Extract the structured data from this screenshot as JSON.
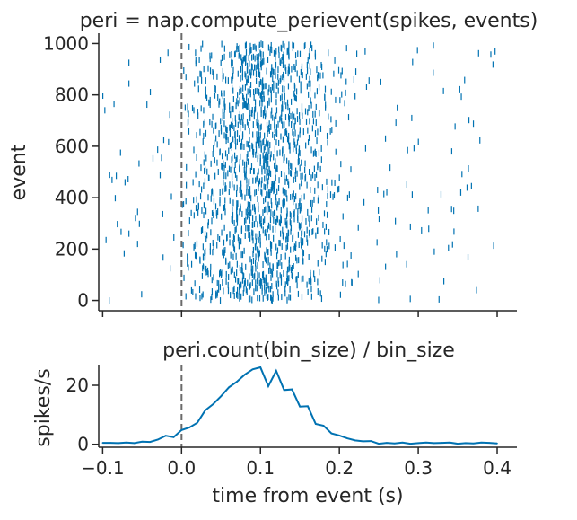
{
  "chart_data": [
    {
      "type": "raster",
      "title": "peri = nap.compute_perievent(spikes, events)",
      "xlabel": "",
      "ylabel": "event",
      "xlim": [
        -0.105,
        0.425
      ],
      "ylim": [
        -40,
        1040
      ],
      "xticks": [
        -0.1,
        0.0,
        0.1,
        0.2,
        0.3,
        0.4
      ],
      "yticks": [
        0,
        200,
        400,
        600,
        800,
        1000
      ],
      "ytick_labels": [
        "0",
        "200",
        "400",
        "600",
        "800",
        "1000"
      ],
      "n_events": 1000,
      "event_line_x": 0.0,
      "color": "#0072b2",
      "event_line_color": "#6b6b6b"
    },
    {
      "type": "line",
      "title": "peri.count(bin_size) / bin_size",
      "xlabel": "time from event (s)",
      "ylabel": "spikes/s",
      "xlim": [
        -0.105,
        0.425
      ],
      "ylim": [
        -1,
        27
      ],
      "xticks": [
        -0.1,
        0.0,
        0.1,
        0.2,
        0.3,
        0.4
      ],
      "xtick_labels": [
        "−0.1",
        "0.0",
        "0.1",
        "0.2",
        "0.3",
        "0.4"
      ],
      "yticks": [
        0,
        20
      ],
      "ytick_labels": [
        "0",
        "20"
      ],
      "x": [
        -0.1,
        -0.09,
        -0.08,
        -0.07,
        -0.06,
        -0.05,
        -0.04,
        -0.03,
        -0.02,
        -0.01,
        0.0,
        0.01,
        0.02,
        0.03,
        0.04,
        0.05,
        0.06,
        0.07,
        0.08,
        0.09,
        0.1,
        0.11,
        0.12,
        0.13,
        0.14,
        0.15,
        0.16,
        0.17,
        0.18,
        0.19,
        0.2,
        0.21,
        0.22,
        0.23,
        0.24,
        0.25,
        0.26,
        0.27,
        0.28,
        0.29,
        0.3,
        0.31,
        0.32,
        0.33,
        0.34,
        0.35,
        0.36,
        0.37,
        0.38,
        0.39,
        0.4
      ],
      "values": [
        0.5,
        0.5,
        0.4,
        0.6,
        0.4,
        0.9,
        0.8,
        1.6,
        2.9,
        2.4,
        4.8,
        5.7,
        7.3,
        11.5,
        13.6,
        16.3,
        19.3,
        21.2,
        23.6,
        25.4,
        26.1,
        19.7,
        24.9,
        18.4,
        18.6,
        12.8,
        12.9,
        6.9,
        6.3,
        3.7,
        3.0,
        2.0,
        1.3,
        1.0,
        1.1,
        0.2,
        0.5,
        0.3,
        0.6,
        0.2,
        0.4,
        0.6,
        0.4,
        0.5,
        0.6,
        0.2,
        0.4,
        0.3,
        0.6,
        0.5,
        0.3
      ],
      "color": "#0072b2",
      "event_line_color": "#6b6b6b"
    }
  ]
}
